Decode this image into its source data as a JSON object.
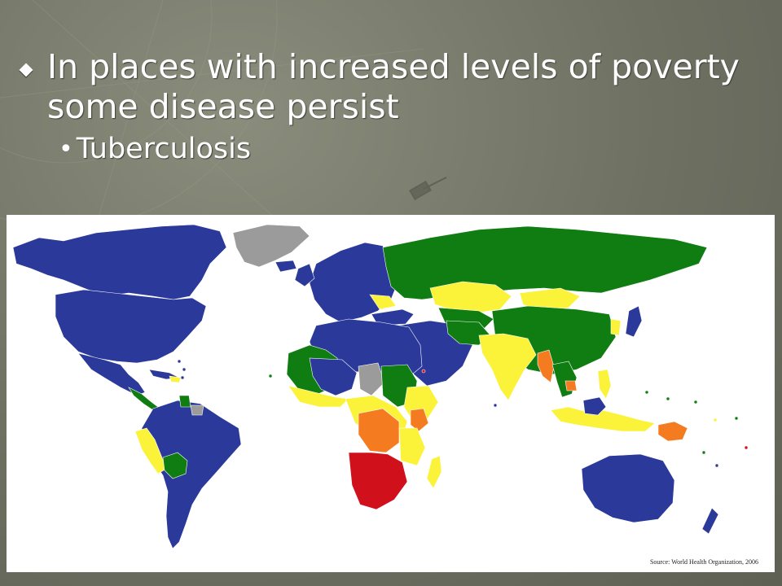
{
  "slide": {
    "bullet_main": "In places with increased levels of poverty some disease persist",
    "bullet_sub": "Tuberculosis"
  },
  "map": {
    "source": "Source: World Health Organization, 2006",
    "colors": {
      "blue": "#2b3a9a",
      "green": "#0f7d12",
      "yellow": "#fbf23a",
      "orange": "#f47b20",
      "red": "#d0101a",
      "gray": "#9b9b9b",
      "ocean": "#ffffff"
    }
  }
}
